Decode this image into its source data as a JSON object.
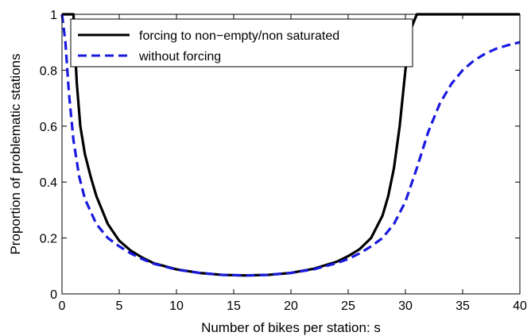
{
  "chart_data": {
    "type": "line",
    "title": "",
    "xlabel": "Number of bikes per station: s",
    "ylabel": "Proportion of problematic stations",
    "xlim": [
      0,
      40
    ],
    "ylim": [
      0,
      1
    ],
    "xticks": [
      0,
      5,
      10,
      15,
      20,
      25,
      30,
      35,
      40
    ],
    "yticks": [
      0,
      0.2,
      0.4,
      0.6,
      0.8,
      1
    ],
    "ytick_labels": [
      "0",
      "0.2",
      "0.4",
      "0.6",
      "0.8",
      "1"
    ],
    "grid": false,
    "legend_position": "top-left",
    "series": [
      {
        "name": "forcing to non−empty/non saturated",
        "color": "#000000",
        "style": "solid",
        "x": [
          0,
          1,
          1.1,
          1.3,
          1.6,
          2,
          2.5,
          3,
          4,
          5,
          6,
          7,
          8,
          10,
          12,
          14,
          16,
          18,
          20,
          22,
          24,
          25,
          26,
          27,
          28,
          28.5,
          29,
          29.5,
          30,
          30.5,
          31,
          32,
          35,
          40
        ],
        "y": [
          1,
          1,
          0.9,
          0.75,
          0.6,
          0.5,
          0.42,
          0.35,
          0.25,
          0.19,
          0.155,
          0.13,
          0.11,
          0.088,
          0.075,
          0.068,
          0.066,
          0.068,
          0.075,
          0.09,
          0.115,
          0.135,
          0.16,
          0.2,
          0.28,
          0.35,
          0.45,
          0.6,
          0.8,
          0.95,
          1,
          1,
          1,
          1
        ]
      },
      {
        "name": "without forcing",
        "color": "#1a1adf",
        "style": "dashed",
        "x": [
          0,
          0.3,
          0.6,
          1,
          1.5,
          2,
          3,
          4,
          5,
          6,
          7,
          8,
          10,
          12,
          14,
          16,
          18,
          20,
          22,
          24,
          25,
          26,
          27,
          28,
          29,
          30,
          31,
          32,
          33,
          34,
          35,
          36,
          37,
          38,
          39,
          40
        ],
        "y": [
          1,
          0.9,
          0.72,
          0.55,
          0.42,
          0.34,
          0.25,
          0.2,
          0.17,
          0.145,
          0.125,
          0.108,
          0.087,
          0.075,
          0.068,
          0.066,
          0.068,
          0.075,
          0.088,
          0.11,
          0.125,
          0.145,
          0.17,
          0.2,
          0.25,
          0.33,
          0.45,
          0.58,
          0.68,
          0.75,
          0.8,
          0.835,
          0.86,
          0.878,
          0.89,
          0.9
        ]
      }
    ]
  }
}
